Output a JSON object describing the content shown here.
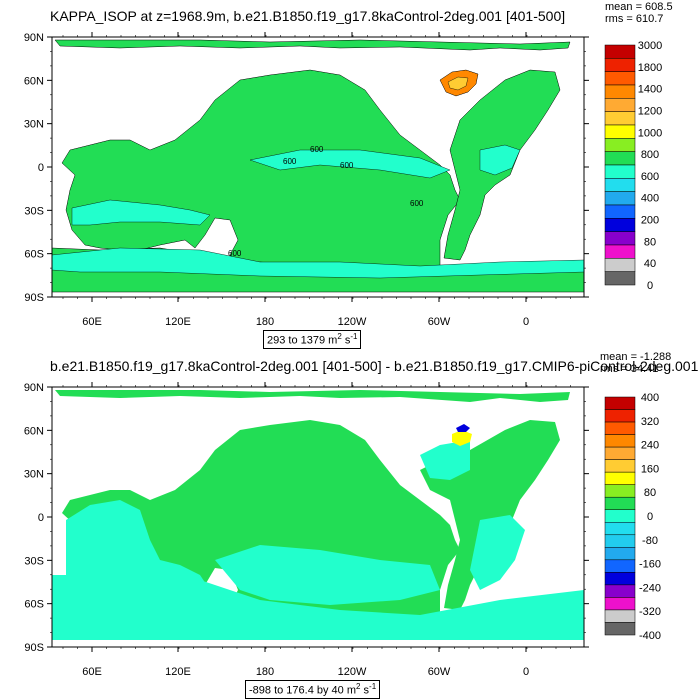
{
  "panel1": {
    "title": "KAPPA_ISOP at z=1968.9m, b.e21.B1850.f19_g17.8kaControl-2deg.001 [401-500]",
    "mean": "mean = 608.5",
    "rms": "rms = 610.7",
    "range_prefix": "293 to 1379 m",
    "range_exp": "2",
    "range_suffix": " s",
    "range_exp2": "-1",
    "colorbar_labels": [
      "3000",
      "1800",
      "1400",
      "1200",
      "1000",
      "800",
      "600",
      "400",
      "200",
      "80",
      "40",
      "0"
    ],
    "colorbar_colors": [
      "#c40000",
      "#ee2200",
      "#ff5a00",
      "#ff8800",
      "#ffaa33",
      "#ffcc33",
      "#ffff00",
      "#88ee22",
      "#22dd55",
      "#22ffcc",
      "#22ddee",
      "#22aaee",
      "#1166ff",
      "#0000dd",
      "#8800cc",
      "#ee11cc",
      "#cccccc",
      "#666666"
    ],
    "contour_labels": [
      "600",
      "600",
      "600",
      "600",
      "600"
    ]
  },
  "panel2": {
    "title": "b.e21.B1850.f19_g17.8kaControl-2deg.001 [401-500] - b.e21.B1850.f19_g17.CMIP6-piControl-2deg.001 [401-",
    "mean": "mean = -1.288",
    "rms": "rms = 34.41",
    "range_prefix": "-898 to 176.4 by 40 m",
    "range_exp": "2",
    "range_suffix": " s",
    "range_exp2": "-1",
    "colorbar_labels": [
      "400",
      "320",
      "240",
      "160",
      "80",
      "0",
      "-80",
      "-160",
      "-240",
      "-320",
      "-400"
    ],
    "colorbar_colors": [
      "#c40000",
      "#ee2200",
      "#ff5a00",
      "#ff8800",
      "#ffaa33",
      "#ffcc33",
      "#ffff00",
      "#88ee22",
      "#22dd55",
      "#22ffcc",
      "#22ddee",
      "#22ccee",
      "#22aaee",
      "#1166ff",
      "#0000dd",
      "#8800cc",
      "#ee11cc",
      "#cccccc",
      "#666666"
    ]
  },
  "lat_labels": [
    "90N",
    "60N",
    "30N",
    "0",
    "30S",
    "60S",
    "90S"
  ],
  "lon_labels": [
    "60E",
    "120E",
    "180",
    "120W",
    "60W",
    "0"
  ],
  "colors": {
    "ocean_main": "#22dd55",
    "ocean_light": "#22ffcc",
    "ocean_cyan": "#22ddee",
    "land": "#ffffff"
  }
}
